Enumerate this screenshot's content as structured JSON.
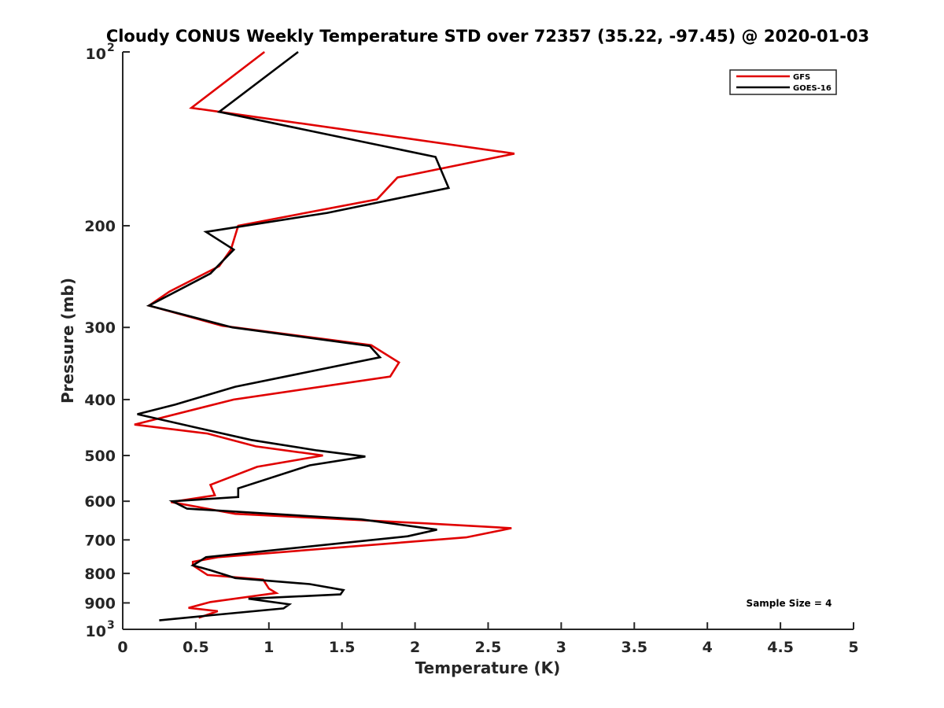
{
  "chart_data": {
    "type": "line",
    "title": "Cloudy CONUS Weekly Temperature STD over 72357 (35.22, -97.45) @ 2020-01-03",
    "xlabel": "Temperature (K)",
    "ylabel": "Pressure (mb)",
    "xlim": [
      0,
      5
    ],
    "ylim": [
      100,
      1000
    ],
    "y_scale": "log",
    "y_reversed": true,
    "x_ticks": [
      "0",
      "0.5",
      "1",
      "1.5",
      "2",
      "2.5",
      "3",
      "3.5",
      "4",
      "4.5",
      "5"
    ],
    "x_tick_values": [
      0,
      0.5,
      1,
      1.5,
      2,
      2.5,
      3,
      3.5,
      4,
      4.5,
      5
    ],
    "y_ticks": [
      {
        "value": 100,
        "base": "10",
        "exp": "2"
      },
      {
        "value": 200,
        "label": "200"
      },
      {
        "value": 300,
        "label": "300"
      },
      {
        "value": 400,
        "label": "400"
      },
      {
        "value": 500,
        "label": "500"
      },
      {
        "value": 600,
        "label": "600"
      },
      {
        "value": 700,
        "label": "700"
      },
      {
        "value": 800,
        "label": "800"
      },
      {
        "value": 900,
        "label": "900"
      },
      {
        "value": 1000,
        "base": "10",
        "exp": "3"
      }
    ],
    "grid": false,
    "legend_position": "top-right",
    "series": [
      {
        "name": "GFS",
        "color": "#e00000",
        "points": [
          [
            0.97,
            100
          ],
          [
            0.47,
            125
          ],
          [
            2.68,
            150
          ],
          [
            1.88,
            165
          ],
          [
            1.74,
            180
          ],
          [
            0.79,
            200
          ],
          [
            0.74,
            220
          ],
          [
            0.66,
            235
          ],
          [
            0.32,
            260
          ],
          [
            0.18,
            275
          ],
          [
            0.68,
            298
          ],
          [
            1.7,
            322
          ],
          [
            1.89,
            345
          ],
          [
            1.83,
            365
          ],
          [
            0.76,
            400
          ],
          [
            0.08,
            442
          ],
          [
            0.58,
            458
          ],
          [
            0.91,
            482
          ],
          [
            1.37,
            500
          ],
          [
            0.92,
            523
          ],
          [
            0.6,
            562
          ],
          [
            0.63,
            586
          ],
          [
            0.33,
            602
          ],
          [
            0.77,
            631
          ],
          [
            2.05,
            655
          ],
          [
            2.66,
            668
          ],
          [
            2.35,
            693
          ],
          [
            0.65,
            750
          ],
          [
            0.48,
            764
          ],
          [
            0.48,
            775
          ],
          [
            0.58,
            805
          ],
          [
            0.96,
            820
          ],
          [
            1.0,
            850
          ],
          [
            1.05,
            865
          ],
          [
            0.6,
            897
          ],
          [
            0.45,
            918
          ],
          [
            0.65,
            930
          ],
          [
            0.52,
            955
          ]
        ]
      },
      {
        "name": "GOES-16",
        "color": "#000000",
        "points": [
          [
            1.2,
            100
          ],
          [
            0.66,
            127
          ],
          [
            2.14,
            152
          ],
          [
            2.23,
            172
          ],
          [
            1.4,
            190
          ],
          [
            0.57,
            205
          ],
          [
            0.76,
            220
          ],
          [
            0.6,
            242
          ],
          [
            0.18,
            275
          ],
          [
            0.75,
            300
          ],
          [
            1.69,
            323
          ],
          [
            1.76,
            338
          ],
          [
            0.77,
            380
          ],
          [
            0.36,
            408
          ],
          [
            0.1,
            424
          ],
          [
            0.55,
            450
          ],
          [
            0.88,
            470
          ],
          [
            1.33,
            490
          ],
          [
            1.66,
            502
          ],
          [
            1.28,
            520
          ],
          [
            0.79,
            570
          ],
          [
            0.79,
            590
          ],
          [
            0.34,
            600
          ],
          [
            0.44,
            618
          ],
          [
            1.63,
            645
          ],
          [
            2.15,
            672
          ],
          [
            1.95,
            690
          ],
          [
            0.57,
            750
          ],
          [
            0.48,
            775
          ],
          [
            0.6,
            790
          ],
          [
            0.77,
            815
          ],
          [
            1.28,
            835
          ],
          [
            1.51,
            855
          ],
          [
            1.49,
            870
          ],
          [
            0.86,
            885
          ],
          [
            1.14,
            905
          ],
          [
            1.1,
            920
          ],
          [
            0.61,
            945
          ],
          [
            0.25,
            965
          ]
        ]
      }
    ],
    "annotations": [
      "Sample Size = 4"
    ]
  }
}
